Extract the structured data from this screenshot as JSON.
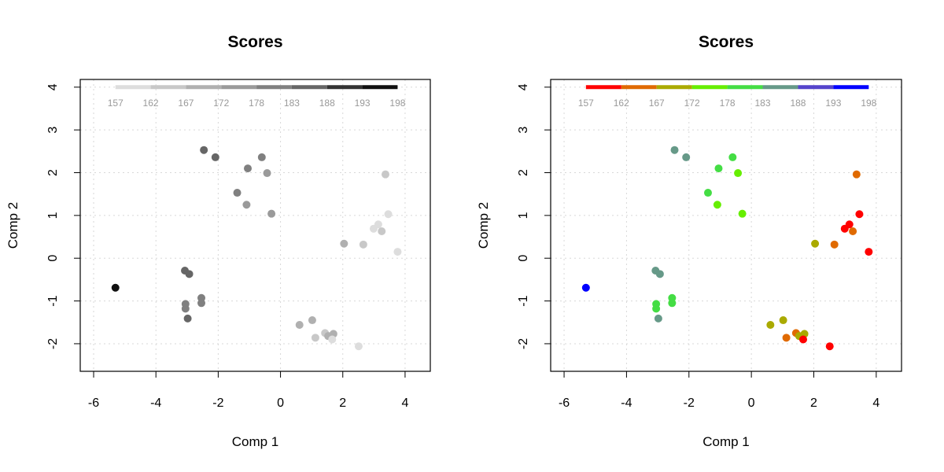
{
  "chart_data": [
    {
      "type": "scatter",
      "title": "Scores",
      "xlabel": "Comp 1",
      "ylabel": "Comp 2",
      "xlim": [
        -6.43,
        4.81
      ],
      "ylim": [
        -2.645,
        4.18
      ],
      "xticks": [
        -6,
        -4,
        -2,
        0,
        2,
        4
      ],
      "yticks": [
        -2,
        -1,
        0,
        1,
        2,
        3,
        4
      ],
      "grid": true,
      "color_scale": {
        "labels": [
          "157",
          "162",
          "167",
          "172",
          "178",
          "183",
          "188",
          "193",
          "198"
        ],
        "breaks": [
          157,
          162,
          167,
          172,
          178,
          183,
          188,
          193,
          198
        ],
        "colors": [
          "#dddddd",
          "#c8c8c8",
          "#b0b0b0",
          "#9a9a9a",
          "#808080",
          "#666666",
          "#333333",
          "#111111"
        ],
        "position": "top"
      }
    },
    {
      "type": "scatter",
      "title": "Scores",
      "xlabel": "Comp 1",
      "ylabel": "Comp 2",
      "xlim": [
        -6.43,
        4.81
      ],
      "ylim": [
        -2.645,
        4.18
      ],
      "xticks": [
        -6,
        -4,
        -2,
        0,
        2,
        4
      ],
      "yticks": [
        -2,
        -1,
        0,
        1,
        2,
        3,
        4
      ],
      "grid": true,
      "color_scale": {
        "labels": [
          "157",
          "162",
          "167",
          "172",
          "178",
          "183",
          "188",
          "193",
          "198"
        ],
        "breaks": [
          157,
          162,
          167,
          172,
          178,
          183,
          188,
          193,
          198
        ],
        "colors": [
          "#ff0000",
          "#e06a00",
          "#aaaa00",
          "#66ee00",
          "#44dd44",
          "#669988",
          "#5544cc",
          "#0000ff"
        ],
        "position": "top"
      }
    }
  ],
  "points": [
    {
      "x": -5.3,
      "y": -0.69,
      "z": 198
    },
    {
      "x": -2.46,
      "y": 2.53,
      "z": 185
    },
    {
      "x": -2.09,
      "y": 2.36,
      "z": 185
    },
    {
      "x": -0.6,
      "y": 2.36,
      "z": 180
    },
    {
      "x": -1.05,
      "y": 2.1,
      "z": 180
    },
    {
      "x": -0.43,
      "y": 1.99,
      "z": 175
    },
    {
      "x": -1.39,
      "y": 1.53,
      "z": 180
    },
    {
      "x": -1.09,
      "y": 1.25,
      "z": 175
    },
    {
      "x": -0.29,
      "y": 1.04,
      "z": 175
    },
    {
      "x": 3.37,
      "y": 1.96,
      "z": 164
    },
    {
      "x": 3.46,
      "y": 1.03,
      "z": 159
    },
    {
      "x": 3.14,
      "y": 0.79,
      "z": 159
    },
    {
      "x": 2.99,
      "y": 0.69,
      "z": 159
    },
    {
      "x": 3.25,
      "y": 0.63,
      "z": 164
    },
    {
      "x": 2.04,
      "y": 0.34,
      "z": 169
    },
    {
      "x": 2.66,
      "y": 0.32,
      "z": 164
    },
    {
      "x": 3.76,
      "y": 0.15,
      "z": 159
    },
    {
      "x": 0.61,
      "y": -1.56,
      "z": 169
    },
    {
      "x": 1.02,
      "y": -1.45,
      "z": 169
    },
    {
      "x": 1.12,
      "y": -1.86,
      "z": 164
    },
    {
      "x": 1.43,
      "y": -1.75,
      "z": 164
    },
    {
      "x": 1.7,
      "y": -1.77,
      "z": 169
    },
    {
      "x": 1.53,
      "y": -1.82,
      "z": 169
    },
    {
      "x": 1.66,
      "y": -1.9,
      "z": 159
    },
    {
      "x": 2.51,
      "y": -2.06,
      "z": 159
    },
    {
      "x": -3.07,
      "y": -0.29,
      "z": 185
    },
    {
      "x": -2.93,
      "y": -0.37,
      "z": 185
    },
    {
      "x": -2.54,
      "y": -0.93,
      "z": 180
    },
    {
      "x": -2.54,
      "y": -1.05,
      "z": 180
    },
    {
      "x": -3.05,
      "y": -1.07,
      "z": 180
    },
    {
      "x": -3.05,
      "y": -1.18,
      "z": 180
    },
    {
      "x": -2.98,
      "y": -1.41,
      "z": 185
    }
  ]
}
